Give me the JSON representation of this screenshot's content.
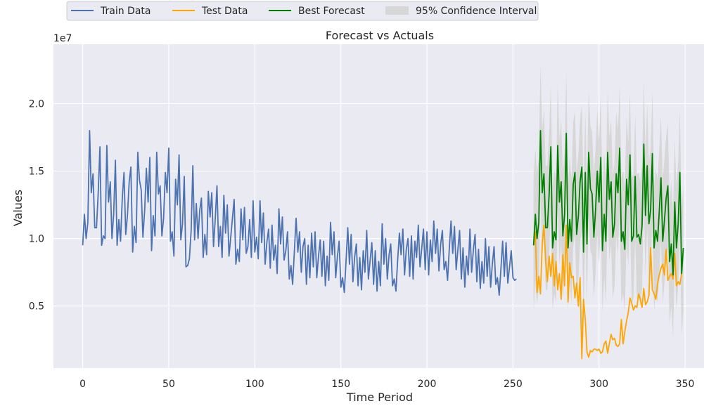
{
  "chart_data": {
    "type": "line",
    "title": "Forecast vs Actuals",
    "xlabel": "Time Period",
    "ylabel": "Values",
    "y_offset_label": "1e7",
    "xlim": [
      -17,
      361
    ],
    "ylim": [
      0.04,
      2.44
    ],
    "xticks": [
      0,
      50,
      100,
      150,
      200,
      250,
      300,
      350
    ],
    "yticks": [
      0.5,
      1.0,
      1.5,
      2.0
    ],
    "ytick_labels": [
      "0.5",
      "1.0",
      "1.5",
      "2.0"
    ],
    "grid": true,
    "legend_placement": "top-left, above plot",
    "legend": [
      "Train Data",
      "Test Data",
      "Best Forecast",
      "95% Confidence Interval"
    ],
    "series": [
      {
        "name": "Train Data",
        "color": "#4c72b0",
        "x_start": 0,
        "values": [
          0.95,
          1.18,
          1.0,
          1.12,
          1.8,
          1.34,
          1.48,
          1.08,
          1.08,
          1.33,
          1.68,
          0.95,
          1.02,
          1.0,
          1.69,
          1.27,
          1.42,
          1.0,
          1.18,
          1.58,
          0.95,
          1.14,
          0.98,
          1.3,
          1.49,
          1.03,
          1.17,
          1.42,
          1.53,
          0.9,
          1.09,
          0.97,
          1.64,
          1.43,
          1.36,
          1.01,
          1.21,
          1.52,
          1.27,
          1.6,
          0.91,
          1.17,
          1.02,
          1.64,
          1.33,
          1.39,
          1.02,
          1.15,
          1.49,
          1.34,
          1.67,
          0.98,
          1.05,
          0.87,
          1.44,
          1.25,
          1.62,
          0.99,
          1.11,
          1.46,
          0.79,
          0.8,
          0.85,
          1.06,
          1.54,
          0.99,
          1.26,
          1.0,
          1.21,
          1.3,
          0.86,
          1.03,
          0.88,
          1.35,
          1.16,
          1.34,
          0.94,
          1.14,
          1.39,
          0.94,
          1.09,
          0.86,
          1.32,
          1.04,
          1.25,
          0.87,
          1.01,
          1.15,
          1.29,
          0.81,
          0.92,
          0.83,
          1.22,
          0.99,
          1.23,
          0.89,
          0.94,
          1.14,
          0.86,
          1.28,
          0.9,
          1.01,
          0.85,
          1.28,
          0.97,
          1.19,
          0.81,
          0.97,
          1.07,
          0.78,
          1.1,
          0.84,
          0.95,
          0.74,
          1.22,
          0.96,
          1.16,
          0.84,
          0.91,
          1.05,
          0.7,
          0.8,
          0.66,
          0.91,
          1.15,
          0.9,
          1.05,
          0.75,
          0.94,
          1.0,
          0.66,
          0.95,
          0.71,
          1.04,
          0.79,
          1.05,
          0.71,
          0.87,
          0.99,
          0.72,
          0.98,
          0.65,
          0.87,
          0.69,
          1.12,
          0.88,
          1.05,
          0.71,
          0.87,
          0.98,
          0.64,
          0.71,
          0.6,
          0.83,
          1.08,
          0.81,
          1.03,
          0.68,
          0.86,
          0.96,
          0.65,
          0.86,
          0.62,
          0.91,
          0.75,
          1.06,
          0.7,
          0.84,
          0.97,
          0.66,
          0.91,
          0.61,
          0.83,
          0.65,
          1.11,
          0.81,
          1.0,
          0.7,
          0.88,
          0.96,
          0.65,
          0.7,
          0.61,
          0.84,
          1.04,
          0.88,
          1.07,
          0.73,
          0.92,
          1.0,
          0.72,
          1.02,
          0.7,
          0.98,
          0.86,
          1.1,
          0.79,
          0.93,
          1.07,
          0.77,
          1.05,
          0.73,
          0.99,
          0.83,
          1.13,
          0.89,
          1.07,
          0.76,
          0.96,
          1.06,
          0.77,
          0.83,
          0.69,
          0.92,
          1.13,
          0.89,
          1.09,
          0.77,
          0.92,
          1.06,
          0.7,
          0.93,
          0.64,
          0.87,
          0.73,
          1.07,
          0.75,
          0.92,
          1.03,
          0.68,
          0.92,
          0.63,
          0.83,
          0.67,
          1.0,
          0.72,
          0.94,
          0.64,
          0.81,
          0.94,
          0.66,
          0.71,
          0.58,
          0.77,
          0.98,
          0.72,
          0.97,
          0.67,
          0.79,
          0.91,
          0.71,
          0.69,
          0.7
        ]
      },
      {
        "name": "Test Data",
        "color": "#ffa500",
        "x_start": 262,
        "values": [
          0.95,
          1.05,
          0.6,
          0.72,
          0.59,
          0.97,
          1.1,
          0.83,
          0.68,
          0.87,
          0.72,
          0.89,
          0.65,
          0.83,
          0.62,
          0.74,
          0.55,
          0.88,
          0.65,
          1.1,
          0.53,
          0.82,
          0.71,
          0.72,
          0.56,
          0.67,
          0.5,
          0.71,
          0.11,
          0.55,
          0.4,
          0.16,
          0.12,
          0.17,
          0.16,
          0.18,
          0.18,
          0.17,
          0.18,
          0.15,
          0.16,
          0.22,
          0.24,
          0.15,
          0.22,
          0.29,
          0.25,
          0.26,
          0.21,
          0.2,
          0.22,
          0.4,
          0.22,
          0.31,
          0.39,
          0.45,
          0.56,
          0.52,
          0.47,
          0.5,
          0.49,
          0.59,
          0.55,
          0.49,
          0.63,
          0.51,
          0.53,
          0.58,
          0.93,
          0.62,
          0.59,
          0.55,
          0.66,
          0.73,
          0.78,
          0.81,
          0.73,
          0.92,
          0.69,
          0.72,
          0.74,
          0.7,
          0.89,
          0.65,
          0.68,
          0.66,
          0.74
        ]
      },
      {
        "name": "Best Forecast",
        "color": "#008000",
        "x_start": 262,
        "values": [
          0.95,
          1.18,
          1.0,
          1.12,
          1.8,
          1.34,
          1.48,
          1.08,
          1.08,
          1.33,
          1.68,
          0.93,
          1.05,
          0.99,
          1.69,
          1.27,
          1.42,
          1.02,
          1.18,
          1.78,
          0.93,
          1.14,
          0.98,
          1.4,
          1.49,
          1.03,
          1.17,
          1.42,
          1.53,
          0.9,
          1.49,
          0.96,
          1.64,
          1.37,
          1.33,
          1.01,
          1.21,
          1.5,
          1.27,
          1.6,
          0.91,
          1.18,
          0.98,
          1.64,
          1.29,
          1.42,
          1.01,
          1.11,
          1.48,
          1.34,
          1.67,
          0.98,
          1.05,
          0.92,
          1.44,
          1.25,
          1.62,
          0.98,
          1.02,
          1.46,
          1.01,
          1.03,
          0.96,
          1.09,
          1.7,
          1.17,
          1.54,
          1.11,
          1.21,
          1.63,
          0.93,
          1.06,
          0.98,
          1.2,
          1.45,
          0.98,
          1.13,
          1.3,
          1.39,
          0.83,
          0.96,
          0.73,
          1.27,
          0.93,
          1.11,
          1.49,
          0.74,
          0.93
        ]
      },
      {
        "name": "95% Confidence Interval",
        "color": "#d3d3d3",
        "x_start": 262,
        "lower": [
          0.45,
          0.69,
          0.51,
          0.64,
          1.32,
          0.87,
          1.01,
          0.62,
          0.62,
          0.87,
          1.22,
          0.47,
          0.59,
          0.53,
          1.23,
          0.81,
          0.96,
          0.56,
          0.72,
          1.32,
          0.47,
          0.68,
          0.52,
          0.94,
          1.03,
          0.57,
          0.71,
          0.96,
          1.07,
          0.44,
          1.03,
          0.5,
          1.18,
          0.91,
          0.87,
          0.55,
          0.75,
          1.04,
          0.81,
          1.14,
          0.45,
          0.72,
          0.52,
          1.18,
          0.83,
          0.96,
          0.55,
          0.65,
          1.02,
          0.88,
          1.21,
          0.52,
          0.59,
          0.46,
          0.98,
          0.79,
          1.16,
          0.52,
          0.56,
          1.0,
          0.55,
          0.57,
          0.5,
          0.63,
          1.24,
          0.71,
          1.08,
          0.65,
          0.75,
          1.17,
          0.47,
          0.6,
          0.52,
          0.74,
          0.99,
          0.52,
          0.67,
          0.84,
          0.93,
          0.37,
          0.5,
          0.27,
          0.81,
          0.47,
          0.65,
          1.03,
          0.28,
          0.47
        ],
        "upper": [
          1.45,
          1.67,
          1.49,
          1.6,
          2.28,
          1.81,
          1.95,
          1.54,
          1.54,
          1.79,
          2.14,
          1.39,
          1.51,
          1.45,
          2.15,
          1.73,
          1.88,
          1.48,
          1.64,
          2.24,
          1.39,
          1.6,
          1.44,
          1.86,
          1.95,
          1.49,
          1.63,
          1.88,
          1.99,
          1.36,
          1.95,
          1.42,
          2.1,
          1.83,
          1.79,
          1.47,
          1.67,
          1.96,
          1.73,
          2.06,
          1.37,
          1.64,
          1.44,
          2.1,
          1.75,
          1.88,
          1.47,
          1.57,
          1.94,
          1.8,
          2.13,
          1.44,
          1.51,
          1.38,
          1.9,
          1.71,
          2.08,
          1.44,
          1.48,
          1.92,
          1.47,
          1.49,
          1.42,
          1.55,
          2.16,
          1.63,
          2.0,
          1.57,
          1.67,
          2.09,
          1.39,
          1.52,
          1.44,
          1.66,
          1.91,
          1.44,
          1.59,
          1.76,
          1.85,
          1.29,
          1.42,
          1.19,
          1.73,
          1.39,
          1.57,
          1.95,
          1.2,
          1.39
        ]
      }
    ]
  }
}
